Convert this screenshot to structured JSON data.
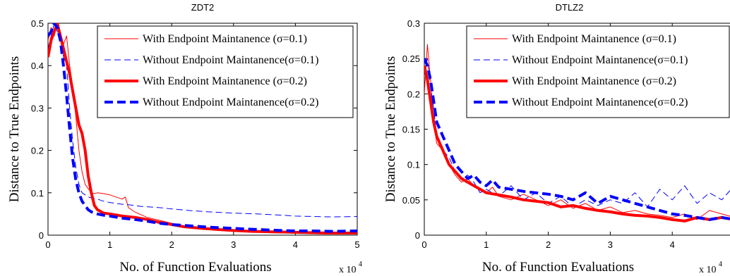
{
  "chart_data": [
    {
      "type": "line",
      "title": "ZDT2",
      "xlabel": "No. of Function Evaluations",
      "ylabel": "Distance to True Endpoints",
      "x_multiplier_label": "x 10",
      "x_multiplier_exp": "4",
      "xlim": [
        0,
        5
      ],
      "ylim": [
        0,
        0.5
      ],
      "xticks": [
        "0",
        "1",
        "2",
        "3",
        "4",
        "5"
      ],
      "yticks": [
        "0",
        "0.1",
        "0.2",
        "0.3",
        "0.4",
        "0.5"
      ],
      "legend_position": "top-right",
      "grid": false,
      "series": [
        {
          "name": "With Endpoint Maintanence (σ=0.1)",
          "color": "#ff0000",
          "width": 1,
          "dash": "",
          "x": [
            0,
            0.05,
            0.1,
            0.15,
            0.2,
            0.25,
            0.3,
            0.35,
            0.4,
            0.45,
            0.5,
            0.55,
            0.6,
            0.65,
            0.7,
            0.75,
            0.8,
            0.9,
            1.0,
            1.1,
            1.2,
            1.25,
            1.3,
            1.4,
            1.6,
            1.8,
            2.0,
            2.2,
            2.5,
            2.8,
            3.0,
            3.3,
            3.6,
            3.8,
            4.0,
            4.3,
            4.6,
            5.0
          ],
          "y": [
            0.46,
            0.49,
            0.47,
            0.5,
            0.48,
            0.45,
            0.47,
            0.4,
            0.35,
            0.28,
            0.2,
            0.15,
            0.12,
            0.11,
            0.1,
            0.098,
            0.1,
            0.098,
            0.095,
            0.09,
            0.085,
            0.09,
            0.065,
            0.055,
            0.042,
            0.035,
            0.028,
            0.022,
            0.016,
            0.013,
            0.012,
            0.01,
            0.009,
            0.008,
            0.007,
            0.006,
            0.005,
            0.005
          ]
        },
        {
          "name": "Without Endpoint Maintanence(σ=0.1)",
          "color": "#0000ff",
          "width": 1,
          "dash": "9 5",
          "x": [
            0,
            0.05,
            0.1,
            0.15,
            0.2,
            0.25,
            0.3,
            0.35,
            0.4,
            0.45,
            0.5,
            0.55,
            0.6,
            0.65,
            0.7,
            0.8,
            0.9,
            1.0,
            1.1,
            1.2,
            1.3,
            1.5,
            1.8,
            2.0,
            2.3,
            2.6,
            3.0,
            3.4,
            3.8,
            4.0,
            4.3,
            4.6,
            5.0
          ],
          "y": [
            0.44,
            0.47,
            0.5,
            0.48,
            0.47,
            0.42,
            0.4,
            0.3,
            0.22,
            0.16,
            0.12,
            0.1,
            0.095,
            0.09,
            0.088,
            0.085,
            0.08,
            0.077,
            0.075,
            0.073,
            0.072,
            0.068,
            0.065,
            0.062,
            0.058,
            0.055,
            0.052,
            0.05,
            0.047,
            0.045,
            0.044,
            0.043,
            0.044
          ]
        },
        {
          "name": "With Endpoint Maintanence (σ=0.2)",
          "color": "#ff0000",
          "width": 4,
          "dash": "",
          "x": [
            0,
            0.05,
            0.1,
            0.15,
            0.2,
            0.25,
            0.3,
            0.35,
            0.4,
            0.45,
            0.5,
            0.55,
            0.6,
            0.65,
            0.7,
            0.75,
            0.8,
            0.9,
            1.0,
            1.2,
            1.4,
            1.6,
            1.8,
            2.0,
            2.2,
            2.5,
            2.8,
            3.0,
            3.3,
            3.6,
            3.9,
            4.2,
            4.5,
            4.8,
            5.0
          ],
          "y": [
            0.42,
            0.46,
            0.48,
            0.5,
            0.47,
            0.44,
            0.41,
            0.38,
            0.34,
            0.3,
            0.26,
            0.24,
            0.2,
            0.14,
            0.1,
            0.07,
            0.06,
            0.052,
            0.05,
            0.045,
            0.042,
            0.037,
            0.03,
            0.025,
            0.02,
            0.016,
            0.013,
            0.011,
            0.009,
            0.008,
            0.007,
            0.006,
            0.005,
            0.005,
            0.005
          ]
        },
        {
          "name": "Without Endpoint Maintanence(σ=0.2)",
          "color": "#0000ff",
          "width": 4,
          "dash": "12 6",
          "x": [
            0,
            0.05,
            0.1,
            0.15,
            0.2,
            0.25,
            0.3,
            0.35,
            0.4,
            0.45,
            0.5,
            0.55,
            0.6,
            0.65,
            0.7,
            0.8,
            0.9,
            1.0,
            1.2,
            1.4,
            1.6,
            1.8,
            2.0,
            2.3,
            2.6,
            3.0,
            3.3,
            3.6,
            4.0,
            4.3,
            4.6,
            5.0
          ],
          "y": [
            0.47,
            0.48,
            0.5,
            0.49,
            0.46,
            0.4,
            0.33,
            0.25,
            0.18,
            0.13,
            0.1,
            0.08,
            0.07,
            0.06,
            0.055,
            0.05,
            0.047,
            0.045,
            0.04,
            0.037,
            0.033,
            0.028,
            0.025,
            0.022,
            0.019,
            0.016,
            0.014,
            0.012,
            0.01,
            0.01,
            0.009,
            0.01
          ]
        }
      ]
    },
    {
      "type": "line",
      "title": "DTLZ2",
      "xlabel": "No. of Function Evaluations",
      "ylabel": "Distance to True Endpoints",
      "x_multiplier_label": "x 10",
      "x_multiplier_exp": "4",
      "xlim": [
        0,
        5
      ],
      "ylim": [
        0,
        0.3
      ],
      "xticks": [
        "0",
        "1",
        "2",
        "3",
        "4"
      ],
      "yticks": [
        "0",
        "0.05",
        "0.1",
        "0.15",
        "0.2",
        "0.25",
        "0.3"
      ],
      "legend_position": "top-right",
      "grid": false,
      "series": [
        {
          "name": "With Endpoint Maintanence (σ=0.1)",
          "color": "#ff0000",
          "width": 1,
          "dash": "",
          "x": [
            0,
            0.05,
            0.1,
            0.15,
            0.2,
            0.3,
            0.4,
            0.5,
            0.6,
            0.7,
            0.8,
            0.9,
            1.0,
            1.1,
            1.2,
            1.4,
            1.6,
            1.8,
            2.0,
            2.2,
            2.4,
            2.6,
            2.8,
            3.0,
            3.2,
            3.4,
            3.6,
            3.8,
            4.0,
            4.2,
            4.4,
            4.6,
            4.8,
            5.0
          ],
          "y": [
            0.2,
            0.27,
            0.22,
            0.16,
            0.13,
            0.12,
            0.1,
            0.085,
            0.075,
            0.08,
            0.07,
            0.065,
            0.06,
            0.068,
            0.055,
            0.05,
            0.058,
            0.05,
            0.042,
            0.05,
            0.038,
            0.045,
            0.035,
            0.04,
            0.032,
            0.035,
            0.03,
            0.028,
            0.025,
            0.03,
            0.022,
            0.035,
            0.03,
            0.025
          ]
        },
        {
          "name": "Without Endpoint Maintanence(σ=0.1)",
          "color": "#0000ff",
          "width": 1,
          "dash": "9 5",
          "x": [
            0,
            0.05,
            0.1,
            0.15,
            0.2,
            0.3,
            0.4,
            0.5,
            0.6,
            0.7,
            0.8,
            0.9,
            1.0,
            1.2,
            1.4,
            1.6,
            1.8,
            2.0,
            2.2,
            2.4,
            2.6,
            2.8,
            3.0,
            3.2,
            3.4,
            3.6,
            3.8,
            4.0,
            4.2,
            4.4,
            4.6,
            4.8,
            5.0
          ],
          "y": [
            0.23,
            0.25,
            0.21,
            0.18,
            0.14,
            0.12,
            0.11,
            0.09,
            0.08,
            0.085,
            0.075,
            0.06,
            0.065,
            0.055,
            0.07,
            0.05,
            0.06,
            0.045,
            0.055,
            0.04,
            0.05,
            0.042,
            0.05,
            0.045,
            0.06,
            0.04,
            0.065,
            0.05,
            0.07,
            0.045,
            0.06,
            0.05,
            0.07
          ]
        },
        {
          "name": "With Endpoint Maintanence (σ=0.2)",
          "color": "#ff0000",
          "width": 4,
          "dash": "",
          "x": [
            0,
            0.05,
            0.1,
            0.15,
            0.2,
            0.3,
            0.4,
            0.5,
            0.6,
            0.7,
            0.8,
            0.9,
            1.0,
            1.2,
            1.4,
            1.6,
            1.8,
            2.0,
            2.2,
            2.4,
            2.6,
            2.8,
            3.0,
            3.2,
            3.4,
            3.6,
            3.8,
            4.0,
            4.2,
            4.4,
            4.6,
            4.8,
            5.0
          ],
          "y": [
            0.24,
            0.22,
            0.19,
            0.16,
            0.14,
            0.12,
            0.1,
            0.09,
            0.08,
            0.075,
            0.07,
            0.065,
            0.06,
            0.057,
            0.054,
            0.05,
            0.048,
            0.046,
            0.04,
            0.042,
            0.038,
            0.035,
            0.033,
            0.03,
            0.028,
            0.027,
            0.025,
            0.022,
            0.02,
            0.025,
            0.022,
            0.025,
            0.022
          ]
        },
        {
          "name": "Without Endpoint Maintanence(σ=0.2)",
          "color": "#0000ff",
          "width": 4,
          "dash": "12 6",
          "x": [
            0,
            0.05,
            0.1,
            0.15,
            0.2,
            0.3,
            0.4,
            0.5,
            0.6,
            0.7,
            0.8,
            0.9,
            1.0,
            1.1,
            1.2,
            1.4,
            1.6,
            1.8,
            2.0,
            2.2,
            2.4,
            2.6,
            2.8,
            3.0,
            3.2,
            3.4,
            3.6,
            3.8,
            4.0,
            4.2,
            4.4,
            4.6,
            4.8,
            5.0
          ],
          "y": [
            0.25,
            0.24,
            0.22,
            0.19,
            0.16,
            0.14,
            0.12,
            0.1,
            0.09,
            0.08,
            0.085,
            0.075,
            0.07,
            0.078,
            0.068,
            0.065,
            0.062,
            0.06,
            0.058,
            0.055,
            0.05,
            0.06,
            0.045,
            0.055,
            0.05,
            0.045,
            0.04,
            0.035,
            0.03,
            0.028,
            0.025,
            0.022,
            0.025,
            0.022
          ]
        }
      ]
    }
  ],
  "legend_sigma": "σ"
}
